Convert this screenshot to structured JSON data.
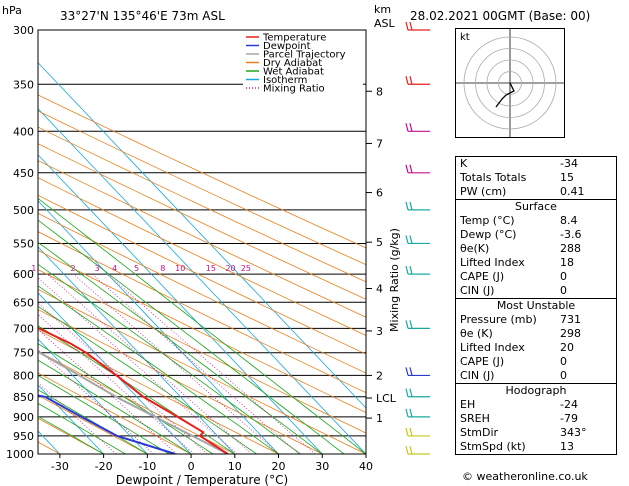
{
  "header": {
    "location": "33°27'N  135°46'E  73m  ASL",
    "datetime": "28.02.2021  00GMT  (Base: 00)",
    "hpa_label": "hPa",
    "km_label": "km",
    "asl_label": "ASL"
  },
  "chart_data": {
    "type": "line",
    "xlabel": "Dewpoint / Temperature (°C)",
    "ylabel_right": "Mixing Ratio (g/kg)",
    "xlim": [
      -35,
      40
    ],
    "pressure_ticks": [
      300,
      350,
      400,
      450,
      500,
      550,
      600,
      650,
      700,
      750,
      800,
      850,
      900,
      950,
      1000
    ],
    "temp_ticks": [
      -30,
      -20,
      -10,
      0,
      10,
      20,
      30,
      40
    ],
    "height_ticks": [
      {
        "km": "8",
        "p": 357
      },
      {
        "km": "7",
        "p": 414
      },
      {
        "km": "6",
        "p": 476
      },
      {
        "km": "5",
        "p": 548
      },
      {
        "km": "4",
        "p": 625
      },
      {
        "km": "3",
        "p": 705
      },
      {
        "km": "2",
        "p": 800
      },
      {
        "km": "LCL",
        "p": 853
      },
      {
        "km": "1",
        "p": 903
      }
    ],
    "mixing_ratio_labels": [
      {
        "label": "1",
        "t": -6.5
      },
      {
        "label": "2",
        "t": 2.5
      },
      {
        "label": "3",
        "t": 8
      },
      {
        "label": "4",
        "t": 12
      },
      {
        "label": "5",
        "t": 17
      },
      {
        "label": "8",
        "t": 23
      },
      {
        "label": "10",
        "t": 27
      },
      {
        "label": "15",
        "t": 34
      },
      {
        "label": "20",
        "t": 38.5
      },
      {
        "label": "25",
        "t": 42
      }
    ],
    "legend": [
      {
        "name": "Temperature",
        "color": "#e8201c",
        "style": "solid"
      },
      {
        "name": "Dewpoint",
        "color": "#2a3ad2",
        "style": "solid"
      },
      {
        "name": "Parcel Trajectory",
        "color": "#a6a6a6",
        "style": "solid"
      },
      {
        "name": "Dry Adiabat",
        "color": "#e8801c",
        "style": "solid"
      },
      {
        "name": "Wet Adiabat",
        "color": "#1ca81c",
        "style": "solid"
      },
      {
        "name": "Isotherm",
        "color": "#18a8e0",
        "style": "solid"
      },
      {
        "name": "Mixing Ratio",
        "color": "#d0209c",
        "style": "dotted"
      }
    ],
    "temperature": [
      {
        "p": 1000,
        "t": 8.4
      },
      {
        "p": 950,
        "t": 6.0
      },
      {
        "p": 940,
        "t": 7.5
      },
      {
        "p": 900,
        "t": 5.0
      },
      {
        "p": 850,
        "t": 1.5
      },
      {
        "p": 800,
        "t": 0.0
      },
      {
        "p": 750,
        "t": -2.0
      },
      {
        "p": 731,
        "t": -3.5
      },
      {
        "p": 700,
        "t": -7.5
      },
      {
        "p": 650,
        "t": -12.0
      },
      {
        "p": 600,
        "t": -16.0
      },
      {
        "p": 550,
        "t": -21.0
      },
      {
        "p": 500,
        "t": -27.0
      },
      {
        "p": 450,
        "t": -33.0
      },
      {
        "p": 400,
        "t": -40.0
      },
      {
        "p": 350,
        "t": -47.0
      },
      {
        "p": 330,
        "t": -50.0
      },
      {
        "p": 300,
        "t": -56.0
      }
    ],
    "dewpoint": [
      {
        "p": 1000,
        "t": -3.6
      },
      {
        "p": 950,
        "t": -13.0
      },
      {
        "p": 900,
        "t": -17.0
      },
      {
        "p": 850,
        "t": -21.0
      },
      {
        "p": 830,
        "t": -30.0
      },
      {
        "p": 800,
        "t": -30.0
      },
      {
        "p": 750,
        "t": -32.0
      },
      {
        "p": 700,
        "t": -33.5
      },
      {
        "p": 680,
        "t": -33.0
      },
      {
        "p": 650,
        "t": -36.0
      },
      {
        "p": 600,
        "t": -40.0
      },
      {
        "p": 550,
        "t": -44.0
      },
      {
        "p": 500,
        "t": -48.0
      },
      {
        "p": 450,
        "t": -34.0
      },
      {
        "p": 400,
        "t": -40.0
      },
      {
        "p": 398,
        "t": -48.0
      },
      {
        "p": 350,
        "t": -53.0
      },
      {
        "p": 320,
        "t": -58.0
      }
    ],
    "parcel": [
      {
        "p": 1000,
        "t": 8.4
      },
      {
        "p": 853,
        "t": -4.5
      },
      {
        "p": 800,
        "t": -8.5
      },
      {
        "p": 700,
        "t": -17.0
      },
      {
        "p": 600,
        "t": -27.0
      },
      {
        "p": 500,
        "t": -40.0
      },
      {
        "p": 400,
        "t": -56.0
      },
      {
        "p": 300,
        "t": -78.0
      }
    ],
    "wind_barbs": [
      {
        "p": 300,
        "color": "#e8201c"
      },
      {
        "p": 350,
        "color": "#e8201c"
      },
      {
        "p": 400,
        "color": "#c8108c"
      },
      {
        "p": 450,
        "color": "#c8108c"
      },
      {
        "p": 500,
        "color": "#1ca8a0"
      },
      {
        "p": 550,
        "color": "#1ca8a0"
      },
      {
        "p": 600,
        "color": "#1ca8a0"
      },
      {
        "p": 700,
        "color": "#1ca8a0"
      },
      {
        "p": 800,
        "color": "#2a3ad2"
      },
      {
        "p": 850,
        "color": "#1ca8a0"
      },
      {
        "p": 900,
        "color": "#1ca8a0"
      },
      {
        "p": 950,
        "color": "#c8c81c"
      },
      {
        "p": 1000,
        "color": "#c8c81c"
      }
    ]
  },
  "hodograph": {
    "label": "kt",
    "rings": [
      10,
      20,
      30,
      40
    ]
  },
  "indices": {
    "top": [
      {
        "label": "K",
        "value": "-34"
      },
      {
        "label": "Totals Totals",
        "value": "15"
      },
      {
        "label": "PW (cm)",
        "value": "0.41"
      }
    ],
    "surface": {
      "title": "Surface",
      "rows": [
        {
          "label": "Temp (°C)",
          "value": "8.4"
        },
        {
          "label": "Dewp (°C)",
          "value": "-3.6"
        },
        {
          "label": "θe(K)",
          "value": "288"
        },
        {
          "label": "Lifted Index",
          "value": "18"
        },
        {
          "label": "CAPE (J)",
          "value": "0"
        },
        {
          "label": "CIN (J)",
          "value": "0"
        }
      ]
    },
    "unstable": {
      "title": "Most Unstable",
      "rows": [
        {
          "label": "Pressure (mb)",
          "value": "731"
        },
        {
          "label": "θe (K)",
          "value": "298"
        },
        {
          "label": "Lifted Index",
          "value": "20"
        },
        {
          "label": "CAPE (J)",
          "value": "0"
        },
        {
          "label": "CIN (J)",
          "value": "0"
        }
      ]
    },
    "hodo": {
      "title": "Hodograph",
      "rows": [
        {
          "label": "EH",
          "value": "-24"
        },
        {
          "label": "SREH",
          "value": "-79"
        },
        {
          "label": "StmDir",
          "value": "343°"
        },
        {
          "label": "StmSpd (kt)",
          "value": "13"
        }
      ]
    }
  },
  "credit": "© weatheronline.co.uk"
}
